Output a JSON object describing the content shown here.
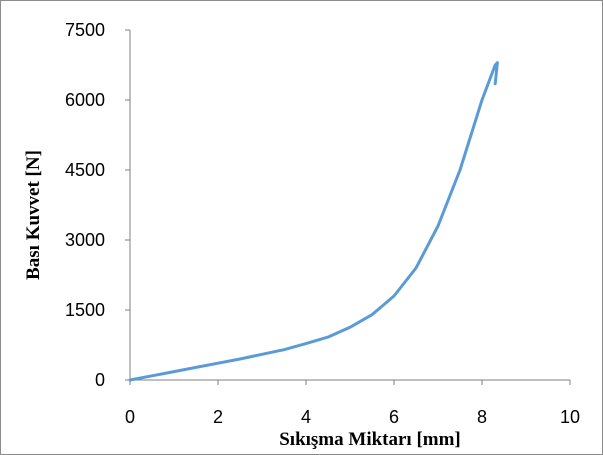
{
  "chart_data": {
    "type": "line",
    "title": "",
    "xlabel": "Sıkışma Miktarı [mm]",
    "ylabel": "Bası Kuvvet [N]",
    "xlim": [
      0,
      10
    ],
    "ylim": [
      0,
      7500
    ],
    "xticks": [
      "0",
      "2",
      "4",
      "6",
      "8",
      "10"
    ],
    "yticks": [
      "0",
      "1500",
      "3000",
      "4500",
      "6000",
      "7500"
    ],
    "grid": false,
    "legend": "none",
    "series": [
      {
        "color": "#5b9bd5",
        "x": [
          0,
          0.5,
          1,
          1.5,
          2,
          2.5,
          3,
          3.5,
          4,
          4.5,
          5,
          5.5,
          6,
          6.5,
          7,
          7.5,
          8,
          8.3,
          8.35,
          8.3
        ],
        "y": [
          0,
          90,
          180,
          270,
          360,
          450,
          550,
          650,
          780,
          920,
          1130,
          1400,
          1800,
          2400,
          3300,
          4500,
          6000,
          6750,
          6800,
          6350
        ]
      }
    ]
  }
}
